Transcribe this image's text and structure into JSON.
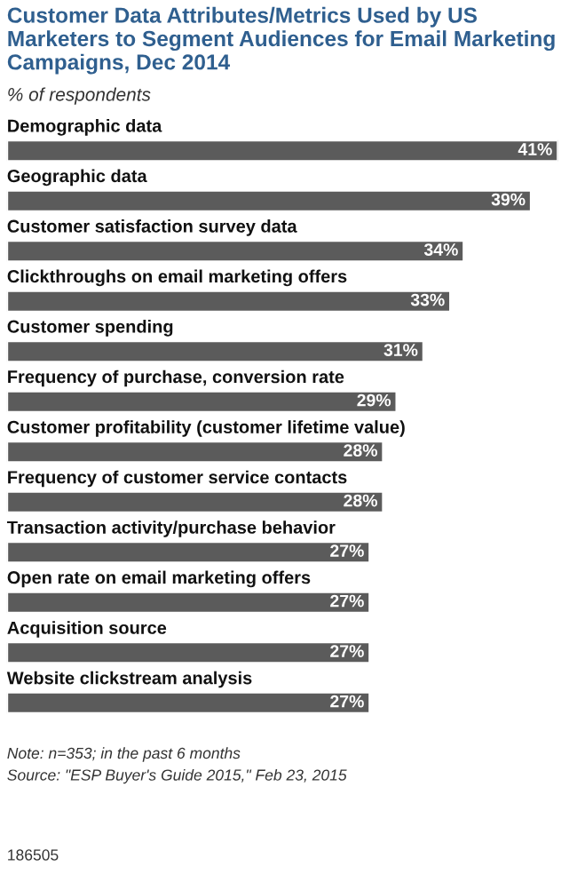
{
  "chart_data": {
    "type": "bar",
    "orientation": "horizontal",
    "title": "Customer Data Attributes/Metrics Used by US Marketers to Segment Audiences for Email Marketing Campaigns, Dec 2014",
    "subtitle": "% of respondents",
    "categories": [
      "Demographic data",
      "Geographic data",
      "Customer satisfaction survey data",
      "Clickthroughs on email marketing offers",
      "Customer spending",
      "Frequency of purchase, conversion rate",
      "Customer profitability (customer lifetime value)",
      "Frequency of customer service contacts",
      "Transaction activity/purchase behavior",
      "Open rate on email marketing offers",
      "Acquisition source",
      "Website clickstream analysis"
    ],
    "values": [
      41,
      39,
      34,
      33,
      31,
      29,
      28,
      28,
      27,
      27,
      27,
      27
    ],
    "value_labels": [
      "41%",
      "39%",
      "34%",
      "33%",
      "31%",
      "29%",
      "28%",
      "28%",
      "27%",
      "27%",
      "27%",
      "27%"
    ],
    "color": "#5b5b5b",
    "annotations": [
      "Note: n=353; in the past 6 months",
      "Source: \"ESP Buyer's Guide 2015,\" Feb 23, 2015",
      "186505"
    ]
  }
}
